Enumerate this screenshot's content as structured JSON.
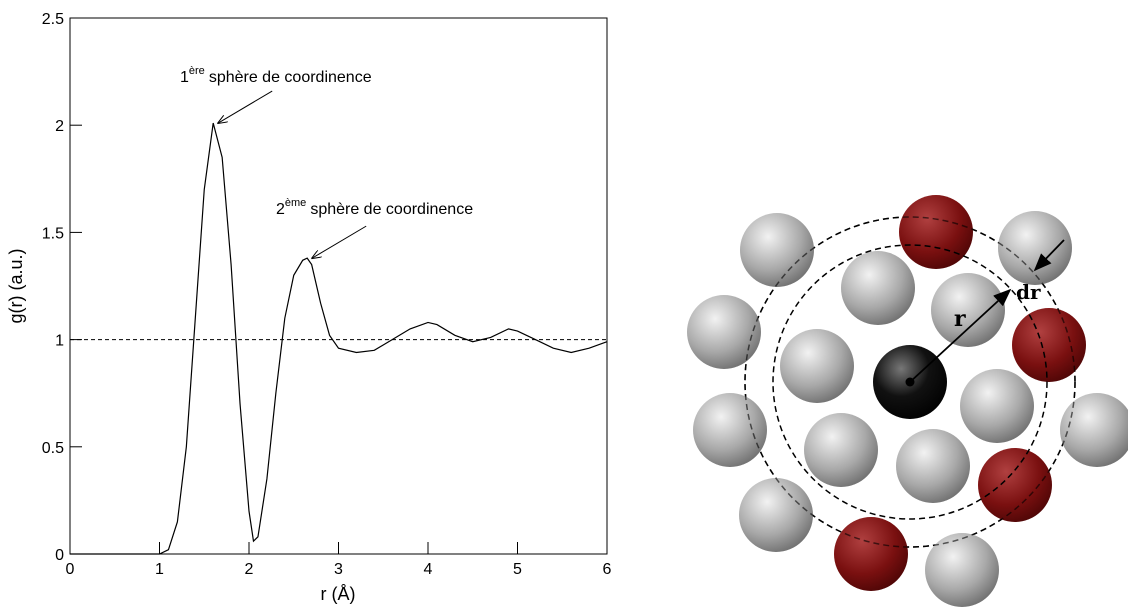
{
  "chart_data": {
    "type": "line",
    "xlabel": "r (Å)",
    "ylabel": "g(r) (a.u.)",
    "xlim": [
      0,
      6
    ],
    "ylim": [
      0,
      2.5
    ],
    "xticks": [
      0,
      1,
      2,
      3,
      4,
      5,
      6
    ],
    "yticks": [
      0,
      0.5,
      1,
      1.5,
      2,
      2.5
    ],
    "reference_line": {
      "y": 1,
      "style": "dashed"
    },
    "series": [
      {
        "color": "#000000",
        "x": [
          0,
          1.0,
          1.1,
          1.2,
          1.3,
          1.4,
          1.5,
          1.6,
          1.7,
          1.8,
          1.9,
          2.0,
          2.05,
          2.1,
          2.2,
          2.3,
          2.4,
          2.5,
          2.6,
          2.65,
          2.7,
          2.8,
          2.9,
          3.0,
          3.2,
          3.4,
          3.6,
          3.8,
          4.0,
          4.1,
          4.3,
          4.5,
          4.7,
          4.9,
          5.0,
          5.2,
          5.4,
          5.6,
          5.8,
          6.0
        ],
        "values": [
          0,
          0,
          0.02,
          0.15,
          0.5,
          1.1,
          1.7,
          2.01,
          1.85,
          1.35,
          0.7,
          0.2,
          0.06,
          0.08,
          0.35,
          0.75,
          1.1,
          1.3,
          1.37,
          1.38,
          1.35,
          1.17,
          1.02,
          0.96,
          0.94,
          0.95,
          1.0,
          1.05,
          1.08,
          1.07,
          1.02,
          0.99,
          1.01,
          1.05,
          1.04,
          1.0,
          0.96,
          0.94,
          0.96,
          0.99
        ]
      }
    ],
    "annotations": [
      {
        "base": "1",
        "sup": "ère",
        "text": "sphère de coordinence",
        "x": 1.6,
        "y": 2.01
      },
      {
        "base": "2",
        "sup": "ème",
        "text": "sphère de coordinence",
        "x": 2.65,
        "y": 1.38
      }
    ]
  },
  "diagram": {
    "radius_label": "r",
    "shell_label": "dr"
  }
}
